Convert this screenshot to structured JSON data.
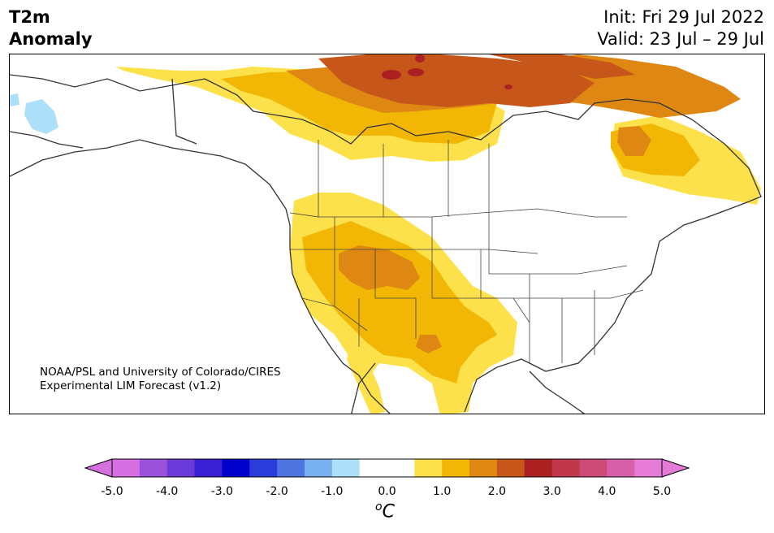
{
  "title": {
    "left_line1": "T2m",
    "left_line2": "Anomaly",
    "right_line1": "Init: Fri 29 Jul 2022",
    "right_line2": "Valid: 23 Jul – 29 Jul"
  },
  "credit": {
    "line1": "NOAA/PSL and University of Colorado/CIRES",
    "line2": "Experimental LIM Forecast (v1.2)"
  },
  "colorbar": {
    "ticks": [
      "-5.0",
      "-4.0",
      "-3.0",
      "-2.0",
      "-1.0",
      "0.0",
      "1.0",
      "2.0",
      "3.0",
      "4.0",
      "5.0"
    ],
    "unit_main": "C",
    "unit_prefix": "o",
    "colors": [
      "#d670e0",
      "#9a52db",
      "#6a3bd9",
      "#3b1fd2",
      "#0000cd",
      "#2a3cd9",
      "#4f74e0",
      "#78b1f0",
      "#aedff9",
      "#ffffff",
      "#ffffff",
      "#fde14a",
      "#f2b705",
      "#de8712",
      "#c7561a",
      "#ab2121",
      "#c0374a",
      "#cc4b77",
      "#d75fa8",
      "#e47bd6"
    ],
    "under_color": "#d670e0",
    "over_color": "#e47bd6"
  },
  "map": {
    "region": "North America",
    "fill_colors": {
      "anom_0_5_1_0": "#fde14a",
      "anom_1_0_1_5": "#f2b705",
      "anom_1_5_2_0": "#de8712",
      "anom_2_0_2_5": "#c7561a",
      "anom_2_5_3_0": "#ab2121",
      "anom_neg_1_0_neg_0_5": "#aedff9"
    }
  }
}
